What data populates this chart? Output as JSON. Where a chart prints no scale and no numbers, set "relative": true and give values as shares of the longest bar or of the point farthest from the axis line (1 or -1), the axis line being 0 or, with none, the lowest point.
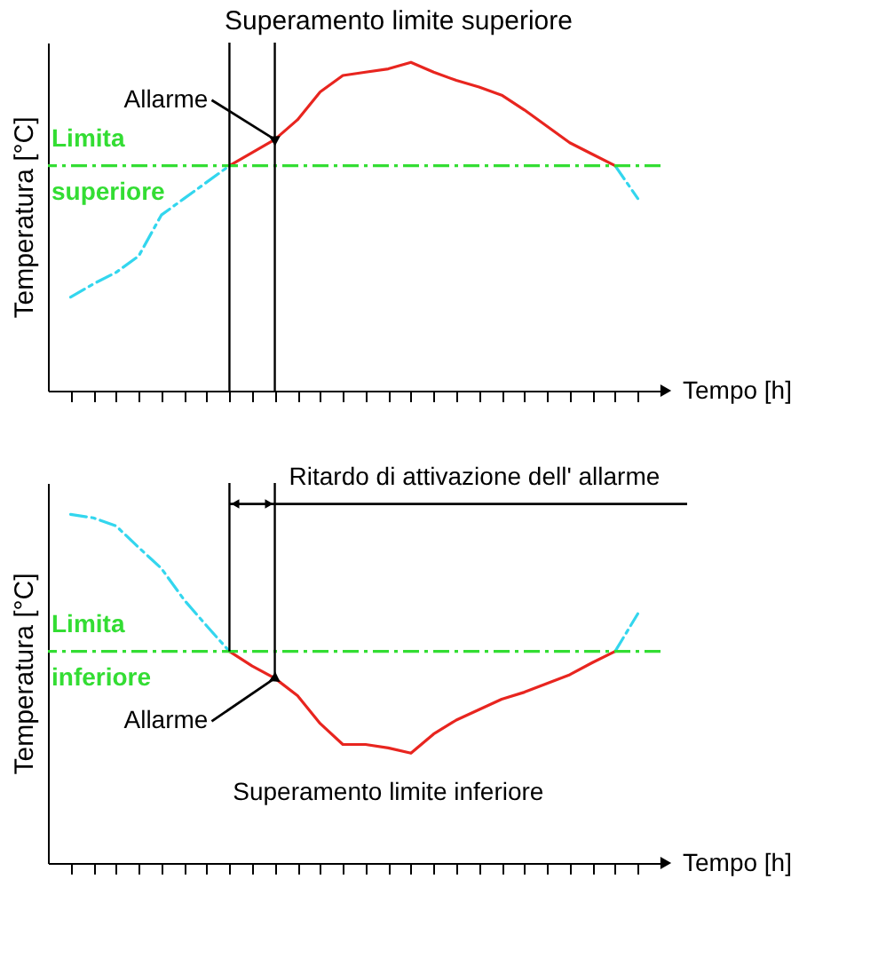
{
  "chart_data": [
    {
      "type": "line",
      "relative": true,
      "title": "Superamento limite superiore",
      "xlabel": "Tempo [h]",
      "ylabel": "Temperatura [°C]",
      "categories": [
        null,
        null,
        null,
        null,
        null,
        null,
        null,
        null,
        null,
        null,
        null,
        null,
        null,
        null,
        null,
        null,
        null,
        null,
        null,
        null,
        null,
        null,
        null,
        null,
        null,
        null
      ],
      "series": [
        {
          "color": "#33d6ee",
          "line_style": "dashed",
          "values": [
            0.285,
            0.325,
            0.36,
            0.41,
            0.535,
            0.585,
            0.635,
            0.685,
            null,
            null,
            null,
            null,
            null,
            null,
            null,
            null,
            null,
            null,
            null,
            null,
            null,
            null,
            null,
            null,
            0.685,
            0.585
          ]
        },
        {
          "color": "#e8251f",
          "line_style": "solid",
          "values": [
            null,
            null,
            null,
            null,
            null,
            null,
            null,
            0.685,
            0.725,
            0.765,
            0.825,
            0.91,
            0.96,
            0.97,
            0.98,
            1.0,
            0.97,
            0.945,
            0.925,
            0.9,
            0.855,
            0.805,
            0.755,
            0.72,
            0.685,
            null
          ]
        }
      ],
      "ref_lines": [
        {
          "axis": "y",
          "value": 0.685,
          "label": "Limita superiore",
          "color": "#33dd33",
          "line_style": "dashed"
        }
      ],
      "annotations": [
        "Allarme"
      ]
    },
    {
      "type": "line",
      "relative": true,
      "xlabel": "Tempo [h]",
      "ylabel": "Temperatura [°C]",
      "categories": [
        null,
        null,
        null,
        null,
        null,
        null,
        null,
        null,
        null,
        null,
        null,
        null,
        null,
        null,
        null,
        null,
        null,
        null,
        null,
        null,
        null,
        null,
        null,
        null,
        null,
        null
      ],
      "series": [
        {
          "color": "#33d6ee",
          "line_style": "dashed",
          "values": [
            1.0,
            0.99,
            0.967,
            0.905,
            0.845,
            0.755,
            0.68,
            0.607,
            null,
            null,
            null,
            null,
            null,
            null,
            null,
            null,
            null,
            null,
            null,
            null,
            null,
            null,
            null,
            null,
            0.607,
            0.715
          ]
        },
        {
          "color": "#e8251f",
          "line_style": "solid",
          "values": [
            null,
            null,
            null,
            null,
            null,
            null,
            null,
            0.607,
            0.565,
            0.53,
            0.48,
            0.4,
            0.34,
            0.34,
            0.33,
            0.315,
            0.37,
            0.41,
            0.44,
            0.47,
            0.49,
            0.515,
            0.54,
            0.575,
            0.607,
            null
          ]
        }
      ],
      "ref_lines": [
        {
          "axis": "y",
          "value": 0.607,
          "label": "Limita inferiore",
          "color": "#33dd33",
          "line_style": "dashed"
        }
      ],
      "annotations": [
        "Allarme",
        "Ritardo di attivazione dell' allarme",
        "Superamento limite inferiore"
      ]
    }
  ]
}
